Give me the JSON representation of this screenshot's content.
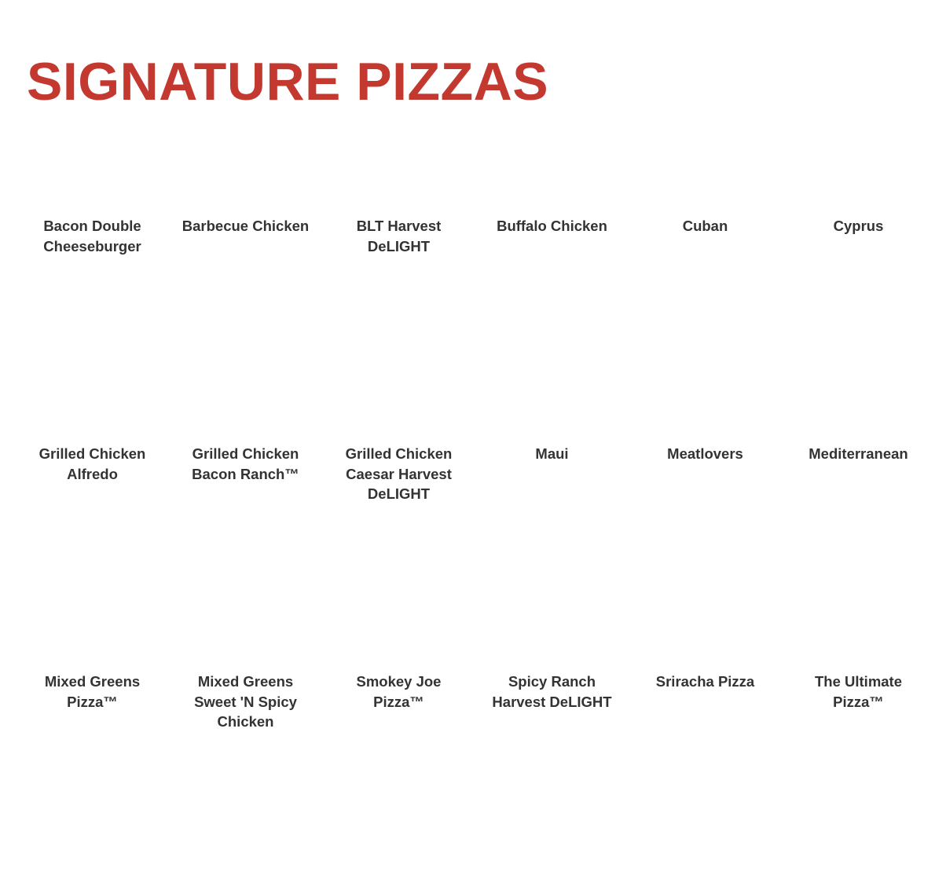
{
  "heading": "SIGNATURE PIZZAS",
  "colors": {
    "heading": "#c3392f",
    "text": "#333333"
  },
  "pizzas": [
    "Bacon Double Cheeseburger",
    "Barbecue Chicken",
    "BLT Harvest DeLIGHT",
    "Buffalo Chicken",
    "Cuban",
    "Cyprus",
    "Grilled Chicken Alfredo",
    "Grilled Chicken Bacon Ranch™",
    "Grilled Chicken Caesar Harvest DeLIGHT",
    "Maui",
    "Meatlovers",
    "Mediterranean",
    "Mixed Greens Pizza™",
    "Mixed Greens Sweet 'N Spicy Chicken",
    "Smokey Joe Pizza™",
    "Spicy Ranch Harvest DeLIGHT",
    "Sriracha Pizza",
    "The Ultimate Pizza™"
  ]
}
